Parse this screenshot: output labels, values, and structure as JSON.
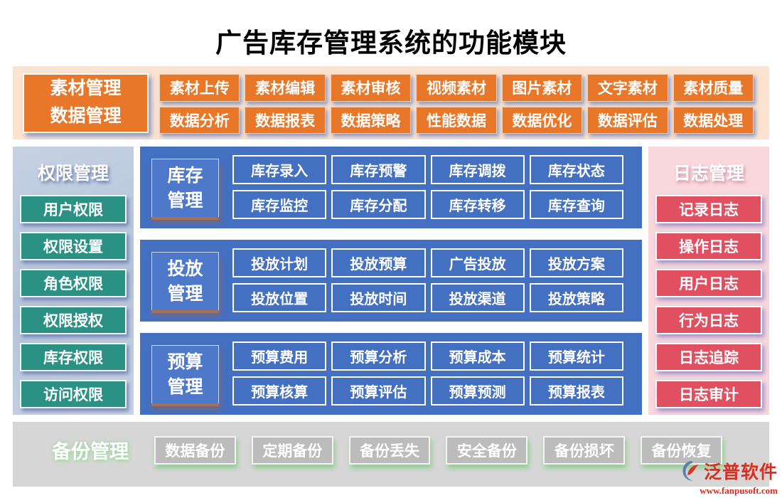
{
  "title": "广告库存管理系统的功能模块",
  "top": {
    "header_lines": [
      "素材管理",
      "数据管理"
    ],
    "rows": [
      [
        "素材上传",
        "素材编辑",
        "素材审核",
        "视频素材",
        "图片素材",
        "文字素材",
        "素材质量"
      ],
      [
        "数据分析",
        "数据报表",
        "数据策略",
        "性能数据",
        "数据优化",
        "数据评估",
        "数据处理"
      ]
    ]
  },
  "left_sidebar": {
    "title": "权限管理",
    "items": [
      "用户权限",
      "权限设置",
      "角色权限",
      "权限授权",
      "库存权限",
      "访问权限"
    ]
  },
  "panels": [
    {
      "label_lines": [
        "库存",
        "管理"
      ],
      "rows": [
        [
          "库存录入",
          "库存预警",
          "库存调拨",
          "库存状态"
        ],
        [
          "库存监控",
          "库存分配",
          "库存转移",
          "库存查询"
        ]
      ]
    },
    {
      "label_lines": [
        "投放",
        "管理"
      ],
      "rows": [
        [
          "投放计划",
          "投放预算",
          "广告投放",
          "投放方案"
        ],
        [
          "投放位置",
          "投放时间",
          "投放渠道",
          "投放策略"
        ]
      ]
    },
    {
      "label_lines": [
        "预算",
        "管理"
      ],
      "rows": [
        [
          "预算费用",
          "预算分析",
          "预算成本",
          "预算统计"
        ],
        [
          "预算核算",
          "预算评估",
          "预算预测",
          "预算报表"
        ]
      ]
    }
  ],
  "right_sidebar": {
    "title": "日志管理",
    "items": [
      "记录日志",
      "操作日志",
      "用户日志",
      "行为日志",
      "日志追踪",
      "日志审计"
    ]
  },
  "bottom_bar": {
    "title": "备份管理",
    "items": [
      "数据备份",
      "定期备份",
      "备份丢失",
      "安全备份",
      "备份损坏",
      "备份恢复"
    ]
  },
  "logo": {
    "name": "泛普软件",
    "url": "www.fanpusoft.com"
  },
  "colors": {
    "orange": "#e8772a",
    "orange_strip_bg": "#fbe3d0",
    "panel_blue": "#4470c1",
    "panel_label_blue": "#4e79ca",
    "teal_button": "#2b9184",
    "left_sidebar_bg": "#bac7dc",
    "red_button": "#e15061",
    "right_sidebar_bg": "#f8d8dd",
    "gray_bar_bg": "#d6d6d6",
    "gray_button": "#bcbcbc",
    "logo_red": "#df2b1e"
  }
}
